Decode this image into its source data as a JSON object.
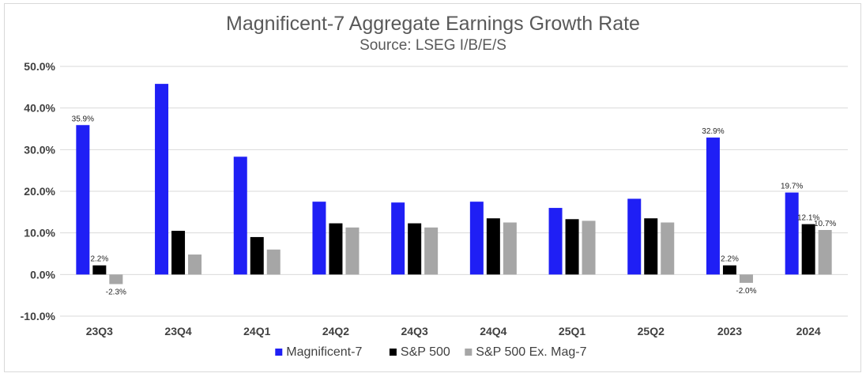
{
  "chart_data": {
    "type": "bar",
    "title": "Magnificent-7 Aggregate Earnings Growth Rate",
    "subtitle": "Source: LSEG I/B/E/S",
    "categories": [
      "23Q3",
      "23Q4",
      "24Q1",
      "24Q2",
      "24Q3",
      "24Q4",
      "25Q1",
      "25Q2",
      "2023",
      "2024"
    ],
    "series": [
      {
        "name": "Magnificent-7",
        "color": "#1f1ff5",
        "values": [
          35.9,
          45.8,
          28.3,
          17.5,
          17.3,
          17.5,
          16.0,
          18.2,
          32.9,
          19.7
        ]
      },
      {
        "name": "S&P 500",
        "color": "#000000",
        "values": [
          2.2,
          10.5,
          9.0,
          12.3,
          12.3,
          13.5,
          13.3,
          13.5,
          2.2,
          12.1
        ]
      },
      {
        "name": "S&P 500 Ex. Mag-7",
        "color": "#a6a6a6",
        "values": [
          -2.3,
          4.8,
          6.0,
          11.3,
          11.3,
          12.5,
          12.9,
          12.5,
          -2.0,
          10.7
        ]
      }
    ],
    "data_labels": [
      {
        "category_index": 0,
        "series_index": 0,
        "text": "35.9%"
      },
      {
        "category_index": 0,
        "series_index": 1,
        "text": "2.2%"
      },
      {
        "category_index": 0,
        "series_index": 2,
        "text": "-2.3%"
      },
      {
        "category_index": 8,
        "series_index": 0,
        "text": "32.9%"
      },
      {
        "category_index": 8,
        "series_index": 1,
        "text": "2.2%"
      },
      {
        "category_index": 8,
        "series_index": 2,
        "text": "-2.0%"
      },
      {
        "category_index": 9,
        "series_index": 0,
        "text": "19.7%"
      },
      {
        "category_index": 9,
        "series_index": 1,
        "text": "12.1%"
      },
      {
        "category_index": 9,
        "series_index": 2,
        "text": "10.7%"
      }
    ],
    "yticks": [
      "50.0%",
      "40.0%",
      "30.0%",
      "20.0%",
      "10.0%",
      "0.0%",
      "-10.0%"
    ],
    "ylim": [
      -10,
      50
    ],
    "grid": true,
    "legend_position": "bottom"
  }
}
